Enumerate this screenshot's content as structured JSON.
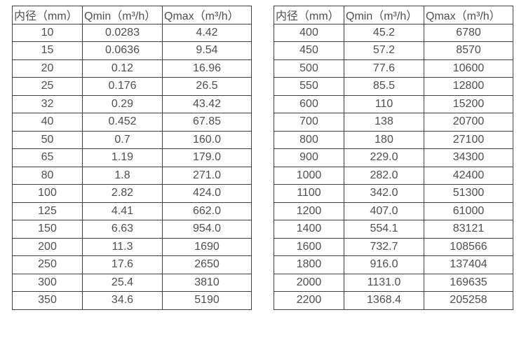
{
  "page": {
    "background_color": "#ffffff",
    "text_color": "#4f4f4f",
    "border_color": "#404040"
  },
  "tables": [
    {
      "name": "flow-rate-table-small-diameters",
      "headers": [
        "内径（mm）",
        "Qmin（m³/h）",
        "Qmax（m³/h）"
      ],
      "rows": [
        [
          "10",
          "0.0283",
          "4.42"
        ],
        [
          "15",
          "0.0636",
          "9.54"
        ],
        [
          "20",
          "0.12",
          "16.96"
        ],
        [
          "25",
          "0.176",
          "26.5"
        ],
        [
          "32",
          "0.29",
          "43.42"
        ],
        [
          "40",
          "0.452",
          "67.85"
        ],
        [
          "50",
          "0.7",
          "160.0"
        ],
        [
          "65",
          "1.19",
          "179.0"
        ],
        [
          "80",
          "1.8",
          "271.0"
        ],
        [
          "100",
          "2.82",
          "424.0"
        ],
        [
          "125",
          "4.41",
          "662.0"
        ],
        [
          "150",
          "6.63",
          "954.0"
        ],
        [
          "200",
          "11.3",
          "1690"
        ],
        [
          "250",
          "17.6",
          "2650"
        ],
        [
          "300",
          "25.4",
          "3810"
        ],
        [
          "350",
          "34.6",
          "5190"
        ]
      ]
    },
    {
      "name": "flow-rate-table-large-diameters",
      "headers": [
        "内径（mm）",
        "Qmin（m³/h）",
        "Qmax（m³/h）"
      ],
      "rows": [
        [
          "400",
          "45.2",
          "6780"
        ],
        [
          "450",
          "57.2",
          "8570"
        ],
        [
          "500",
          "77.6",
          "10600"
        ],
        [
          "550",
          "85.5",
          "12800"
        ],
        [
          "600",
          "110",
          "15200"
        ],
        [
          "700",
          "138",
          "20700"
        ],
        [
          "800",
          "180",
          "27100"
        ],
        [
          "900",
          "229.0",
          "34300"
        ],
        [
          "1000",
          "282.0",
          "42400"
        ],
        [
          "1100",
          "342.0",
          "51300"
        ],
        [
          "1200",
          "407.0",
          "61000"
        ],
        [
          "1400",
          "554.1",
          "83121"
        ],
        [
          "1600",
          "732.7",
          "108566"
        ],
        [
          "1800",
          "916.0",
          "137404"
        ],
        [
          "2000",
          "1131.0",
          "169635"
        ],
        [
          "2200",
          "1368.4",
          "205258"
        ]
      ]
    }
  ]
}
